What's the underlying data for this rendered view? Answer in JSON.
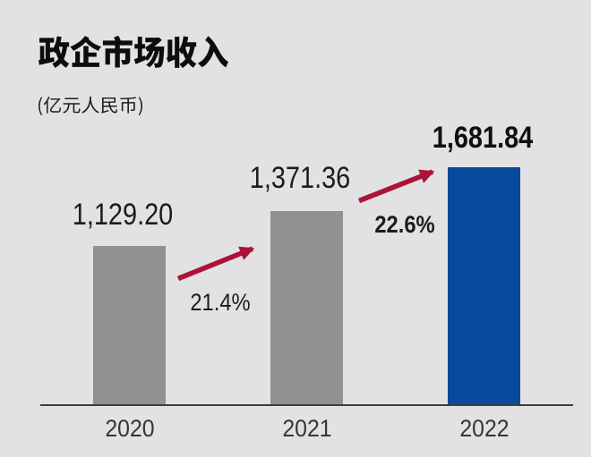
{
  "page": {
    "type": "bar-chart-slide"
  },
  "header": {
    "title": "政企市场收入",
    "subtitle": "(亿元人民币)"
  },
  "colors": {
    "background": "#e2e2e4",
    "bar_gray": "#909190",
    "bar_blue": "#0a4a9d",
    "arrow_red": "#ab1337",
    "axis": "#3e3e40",
    "title_text": "#0d0d0e",
    "value_text": "#1c1c1e",
    "tick_text": "#333638"
  },
  "chart_data": {
    "type": "bar",
    "title": "政企市场收入",
    "unit_label": "(亿元人民币)",
    "categories": [
      "2020",
      "2021",
      "2022"
    ],
    "values": [
      1129.2,
      1371.36,
      1681.84
    ],
    "value_labels": [
      "1,129.20",
      "1,371.36",
      "1,681.84"
    ],
    "bar_colors": [
      "#909190",
      "#909190",
      "#0a4a9d"
    ],
    "emphasized_category": "2022",
    "growth_annotations": [
      {
        "from": "2020",
        "to": "2021",
        "label": "21.4%",
        "value_pct": 21.4
      },
      {
        "from": "2021",
        "to": "2022",
        "label": "22.6%",
        "value_pct": 22.6
      }
    ],
    "ylim": [
      0,
      1780
    ],
    "xlabel": "",
    "ylabel": "",
    "grid": false,
    "legend": false
  }
}
